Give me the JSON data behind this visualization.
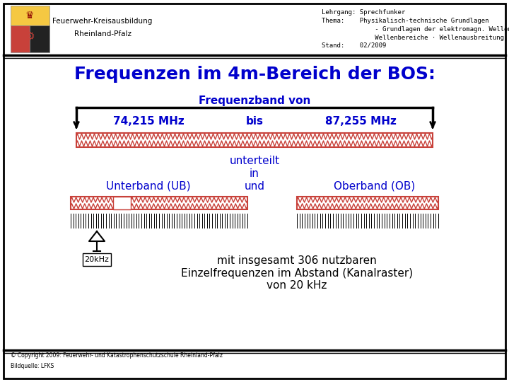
{
  "bg_color": "#ffffff",
  "border_color": "#000000",
  "title": "Frequenzen im 4m-Bereich der BOS:",
  "title_color": "#0000cc",
  "header_left_line1": "Feuerwehr-Kreisausbildung",
  "header_left_line2": "Rheinland-Pfalz",
  "header_right_line1": "Lehrgang: Sprechfunker",
  "header_right_line2": "Thema:    Physikalisch-technische Grundlagen",
  "header_right_line3": "              - Grundlagen der elektromagn. Wellen",
  "header_right_line4": "              Wellenbereiche · Wellenausbreitung",
  "header_right_line5": "Stand:    02/2009",
  "freq_band_text": "Frequenzband von",
  "freq_low": "74,215 MHz",
  "freq_bis": "bis",
  "freq_high": "87,255 MHz",
  "freq_text_color": "#0000cc",
  "unterteilt_text": "unterteilt",
  "in_text": "in",
  "unterband_text": "Unterband (UB)",
  "und_text": "und",
  "oberband_text": "Oberband (OB)",
  "div_text_color": "#0000cc",
  "bottom_text1": "mit insgesamt 306 nutzbaren",
  "bottom_text2": "Einzelfrequenzen im Abstand (Kanalraster)",
  "bottom_text3": "von 20 kHz",
  "bottom_text_color": "#000000",
  "khz_label": "20kHz",
  "copyright_text": "© Copyright 2009: Feuerwehr- und Katastrophenschutzschule Rheinland-Pfalz\nBildquelle: LFKS",
  "wave_red": "#c8413a",
  "wave_white": "#ffffff"
}
